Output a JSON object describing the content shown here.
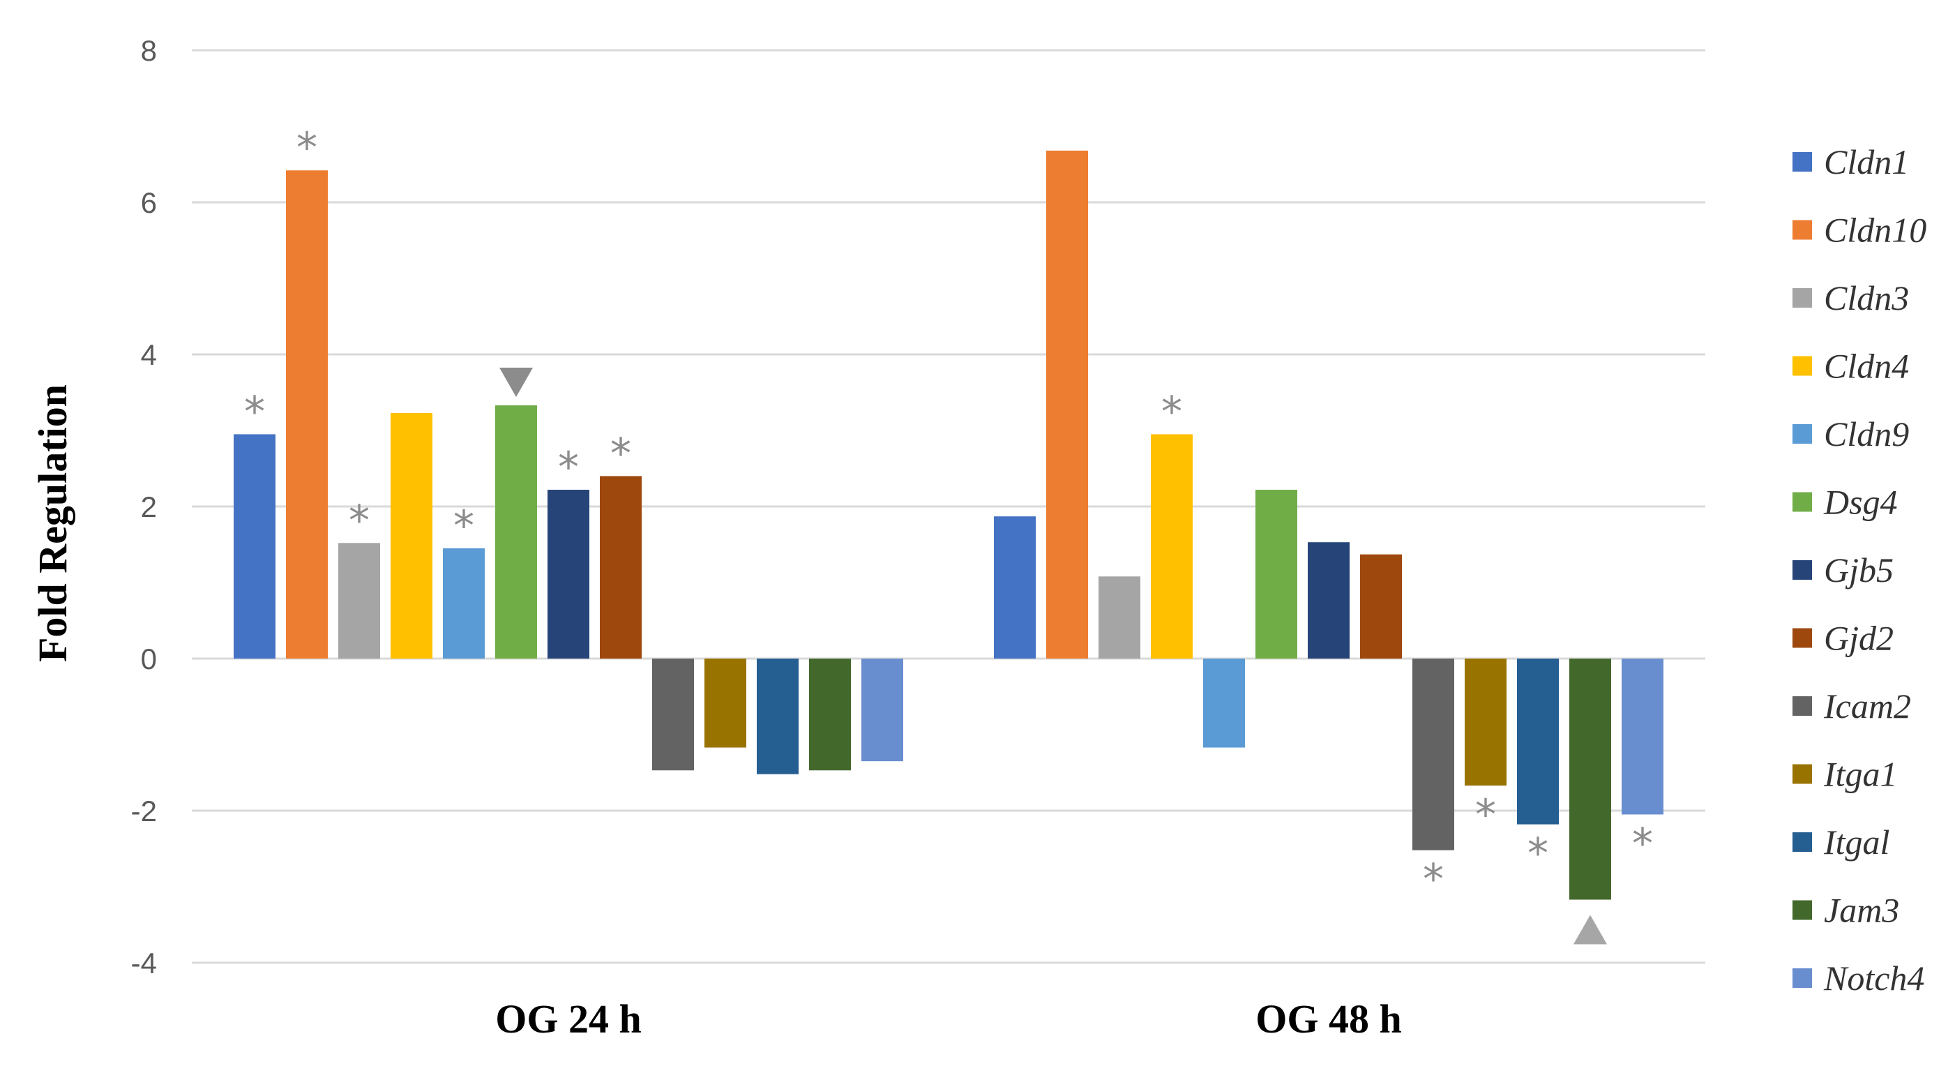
{
  "chart_data": {
    "type": "bar",
    "categories": [
      "OG 24 h",
      "OG 48 h"
    ],
    "ylabel": "Fold Regulation",
    "xlabel": "",
    "ylim": [
      -4,
      8
    ],
    "yticks": [
      "8",
      "6",
      "4",
      "2",
      "0",
      "-2",
      "-4"
    ],
    "grid": true,
    "legend_position": "right",
    "series": [
      {
        "name": "Cldn1",
        "color": "#4472C4",
        "values": [
          2.95,
          1.87
        ],
        "markers": [
          "*",
          ""
        ]
      },
      {
        "name": "Cldn10",
        "color": "#ED7D31",
        "values": [
          6.42,
          6.68
        ],
        "markers": [
          "*",
          ""
        ]
      },
      {
        "name": "Cldn3",
        "color": "#A5A5A5",
        "values": [
          1.52,
          1.08
        ],
        "markers": [
          "*",
          ""
        ]
      },
      {
        "name": "Cldn4",
        "color": "#FFC000",
        "values": [
          3.23,
          2.95
        ],
        "markers": [
          "",
          "*"
        ]
      },
      {
        "name": "Cldn9",
        "color": "#5B9BD5",
        "values": [
          1.45,
          -1.17
        ],
        "markers": [
          "*",
          ""
        ]
      },
      {
        "name": "Dsg4",
        "color": "#70AD47",
        "values": [
          3.33,
          2.22
        ],
        "markers": [
          "triangle-down",
          ""
        ]
      },
      {
        "name": "Gjb5",
        "color": "#264478",
        "values": [
          2.22,
          1.53
        ],
        "markers": [
          "*",
          ""
        ]
      },
      {
        "name": "Gjd2",
        "color": "#9E480E",
        "values": [
          2.4,
          1.37
        ],
        "markers": [
          "*",
          ""
        ]
      },
      {
        "name": "Icam2",
        "color": "#636363",
        "values": [
          -1.47,
          -2.52
        ],
        "markers": [
          "",
          "*"
        ]
      },
      {
        "name": "Itga1",
        "color": "#997300",
        "values": [
          -1.17,
          -1.67
        ],
        "markers": [
          "",
          "*"
        ]
      },
      {
        "name": "Itgal",
        "color": "#255E91",
        "values": [
          -1.52,
          -2.18
        ],
        "markers": [
          "",
          "*"
        ]
      },
      {
        "name": "Jam3",
        "color": "#43682B",
        "values": [
          -1.47,
          -3.17
        ],
        "markers": [
          "",
          "triangle-up"
        ]
      },
      {
        "name": "Notch4",
        "color": "#698ED0",
        "values": [
          -1.35,
          -2.05
        ],
        "markers": [
          "",
          "*"
        ]
      }
    ]
  }
}
